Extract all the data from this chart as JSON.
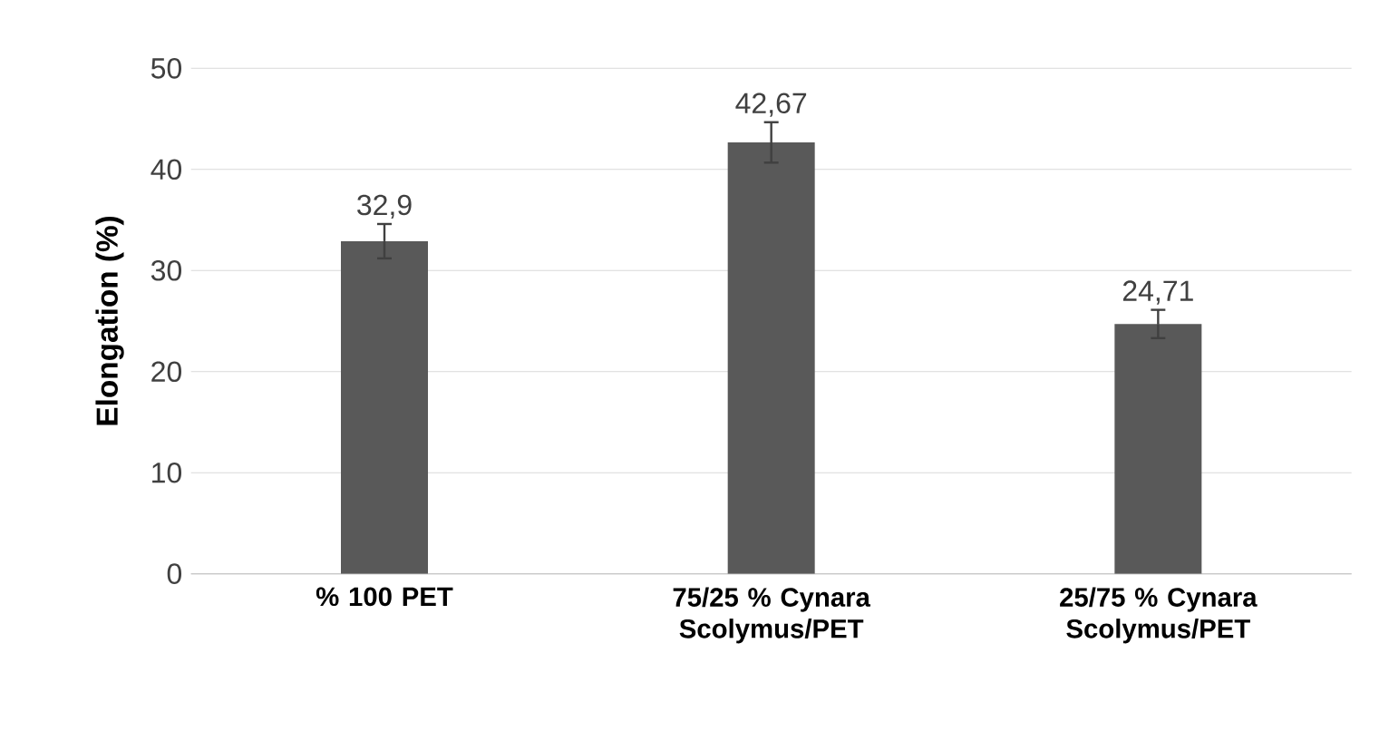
{
  "chart_data": {
    "type": "bar",
    "ylabel": "Elongation (%)",
    "categories": [
      "% 100 PET",
      "75/25 % Cynara Scolymus/PET",
      "25/75 % Cynara Scolymus/PET"
    ],
    "values": [
      32.9,
      42.67,
      24.71
    ],
    "errors": [
      1.7,
      2.0,
      1.4
    ],
    "value_labels": [
      "32,9",
      "42,67",
      "24,71"
    ],
    "color": "#595959",
    "ylim": [
      0,
      50
    ],
    "yticks": [
      0,
      10,
      20,
      30,
      40,
      50
    ],
    "grid": "y"
  }
}
